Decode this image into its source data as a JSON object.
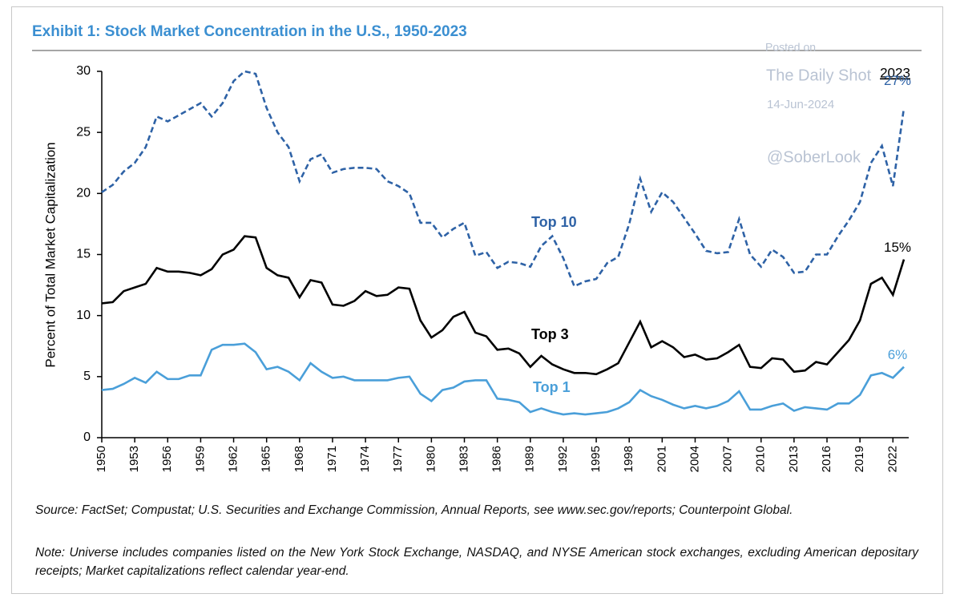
{
  "chart_data": {
    "type": "line",
    "title": "Exhibit 1: Stock Market Concentration in the U.S., 1950-2023",
    "y_label": "Percent of Total Market Capitalization",
    "x": [
      1950,
      1951,
      1952,
      1953,
      1954,
      1955,
      1956,
      1957,
      1958,
      1959,
      1960,
      1961,
      1962,
      1963,
      1964,
      1965,
      1966,
      1967,
      1968,
      1969,
      1970,
      1971,
      1972,
      1973,
      1974,
      1975,
      1976,
      1977,
      1978,
      1979,
      1980,
      1981,
      1982,
      1983,
      1984,
      1985,
      1986,
      1987,
      1988,
      1989,
      1990,
      1991,
      1992,
      1993,
      1994,
      1995,
      1996,
      1997,
      1998,
      1999,
      2000,
      2001,
      2002,
      2003,
      2004,
      2005,
      2006,
      2007,
      2008,
      2009,
      2010,
      2011,
      2012,
      2013,
      2014,
      2015,
      2016,
      2017,
      2018,
      2019,
      2020,
      2021,
      2022,
      2023
    ],
    "xlim": [
      1950,
      2023
    ],
    "xticks": [
      1950,
      1953,
      1956,
      1959,
      1962,
      1965,
      1968,
      1971,
      1974,
      1977,
      1980,
      1983,
      1986,
      1989,
      1992,
      1995,
      1998,
      2001,
      2004,
      2007,
      2010,
      2013,
      2016,
      2019,
      2022
    ],
    "ylim": [
      0,
      30
    ],
    "yticks": [
      0,
      5,
      10,
      15,
      20,
      25,
      30
    ],
    "grid": false,
    "series": [
      {
        "name": "Top 10",
        "color": "#2e62a6",
        "dashed": true,
        "values": [
          20.1,
          20.7,
          21.8,
          22.5,
          23.8,
          26.3,
          25.9,
          26.4,
          26.9,
          27.4,
          26.3,
          27.4,
          29.2,
          30.0,
          29.8,
          27.0,
          25.0,
          23.8,
          21.0,
          22.8,
          23.2,
          21.7,
          22.0,
          22.1,
          22.1,
          22.0,
          21.0,
          20.6,
          20.0,
          17.6,
          17.6,
          16.4,
          17.1,
          17.6,
          14.9,
          15.2,
          13.9,
          14.4,
          14.3,
          14.0,
          15.7,
          16.5,
          14.7,
          12.4,
          12.8,
          13.0,
          14.3,
          14.8,
          17.5,
          21.2,
          18.5,
          20.1,
          19.3,
          18.0,
          16.7,
          15.3,
          15.1,
          15.2,
          17.9,
          15.0,
          14.0,
          15.4,
          14.8,
          13.5,
          13.6,
          15.0,
          15.0,
          16.5,
          17.8,
          19.3,
          22.5,
          23.9,
          20.6,
          27.0
        ],
        "value_labels": [
          null,
          null,
          null,
          null,
          null,
          null,
          null,
          null,
          null,
          null,
          null,
          null,
          null,
          null,
          null,
          null,
          null,
          null,
          null,
          null,
          null,
          null,
          null,
          null,
          null,
          null,
          null,
          null,
          null,
          null,
          null,
          null,
          null,
          null,
          null,
          null,
          null,
          null,
          null,
          null,
          null,
          null,
          null,
          null,
          null,
          null,
          null,
          null,
          null,
          null,
          null,
          null,
          null,
          null,
          null,
          null,
          null,
          null,
          null,
          null,
          null,
          null,
          null,
          null,
          null,
          null,
          null,
          null,
          null,
          null,
          null,
          null,
          null,
          "27%"
        ]
      },
      {
        "name": "Top 3",
        "color": "#000000",
        "dashed": false,
        "values": [
          11.0,
          11.1,
          12.0,
          12.3,
          12.6,
          13.9,
          13.6,
          13.6,
          13.5,
          13.3,
          13.8,
          15.0,
          15.4,
          16.5,
          16.4,
          13.9,
          13.3,
          13.1,
          11.5,
          12.9,
          12.7,
          10.9,
          10.8,
          11.2,
          12.0,
          11.6,
          11.7,
          12.3,
          12.2,
          9.6,
          8.2,
          8.8,
          9.9,
          10.3,
          8.6,
          8.3,
          7.2,
          7.3,
          6.9,
          5.8,
          6.7,
          6.0,
          5.6,
          5.3,
          5.3,
          5.2,
          5.6,
          6.1,
          7.8,
          9.5,
          7.4,
          7.9,
          7.4,
          6.6,
          6.8,
          6.4,
          6.5,
          7.0,
          7.6,
          5.8,
          5.7,
          6.5,
          6.4,
          5.4,
          5.5,
          6.2,
          6.0,
          7.0,
          8.0,
          9.6,
          12.6,
          13.1,
          11.7,
          14.6
        ],
        "value_labels": [
          null,
          null,
          null,
          null,
          null,
          null,
          null,
          null,
          null,
          null,
          null,
          null,
          null,
          null,
          null,
          null,
          null,
          null,
          null,
          null,
          null,
          null,
          null,
          null,
          null,
          null,
          null,
          null,
          null,
          null,
          null,
          null,
          null,
          null,
          null,
          null,
          null,
          null,
          null,
          null,
          null,
          null,
          null,
          null,
          null,
          null,
          null,
          null,
          null,
          null,
          null,
          null,
          null,
          null,
          null,
          null,
          null,
          null,
          null,
          null,
          null,
          null,
          null,
          null,
          null,
          null,
          null,
          null,
          null,
          null,
          null,
          null,
          null,
          "15%"
        ]
      },
      {
        "name": "Top 1",
        "color": "#4a9fd9",
        "dashed": false,
        "values": [
          3.9,
          4.0,
          4.4,
          4.9,
          4.5,
          5.4,
          4.8,
          4.8,
          5.1,
          5.1,
          7.2,
          7.6,
          7.6,
          7.7,
          7.0,
          5.6,
          5.8,
          5.4,
          4.7,
          6.1,
          5.4,
          4.9,
          5.0,
          4.7,
          4.7,
          4.7,
          4.7,
          4.9,
          5.0,
          3.6,
          3.0,
          3.9,
          4.1,
          4.6,
          4.7,
          4.7,
          3.2,
          3.1,
          2.9,
          2.1,
          2.4,
          2.1,
          1.9,
          2.0,
          1.9,
          2.0,
          2.1,
          2.4,
          2.9,
          3.9,
          3.4,
          3.1,
          2.7,
          2.4,
          2.6,
          2.4,
          2.6,
          3.0,
          3.8,
          2.3,
          2.3,
          2.6,
          2.8,
          2.2,
          2.5,
          2.4,
          2.3,
          2.8,
          2.8,
          3.5,
          5.1,
          5.3,
          4.9,
          5.8
        ],
        "value_labels": [
          null,
          null,
          null,
          null,
          null,
          null,
          null,
          null,
          null,
          null,
          null,
          null,
          null,
          null,
          null,
          null,
          null,
          null,
          null,
          null,
          null,
          null,
          null,
          null,
          null,
          null,
          null,
          null,
          null,
          null,
          null,
          null,
          null,
          null,
          null,
          null,
          null,
          null,
          null,
          null,
          null,
          null,
          null,
          null,
          null,
          null,
          null,
          null,
          null,
          null,
          null,
          null,
          null,
          null,
          null,
          null,
          null,
          null,
          null,
          null,
          null,
          null,
          null,
          null,
          null,
          null,
          null,
          null,
          null,
          null,
          null,
          null,
          null,
          "6%"
        ]
      }
    ],
    "last_year_label": "2023",
    "watermark": [
      "Posted on",
      "The Daily Shot",
      "14-Jun-2024",
      "@SoberLook"
    ],
    "source": "Source: FactSet; Compustat; U.S. Securities and Exchange Commission, Annual Reports, see www.sec.gov/reports; Counterpoint Global.",
    "note": "Note: Universe includes companies listed on the New York Stock Exchange, NASDAQ, and NYSE American stock exchanges, excluding American depositary receipts; Market capitalizations reflect calendar year-end."
  }
}
